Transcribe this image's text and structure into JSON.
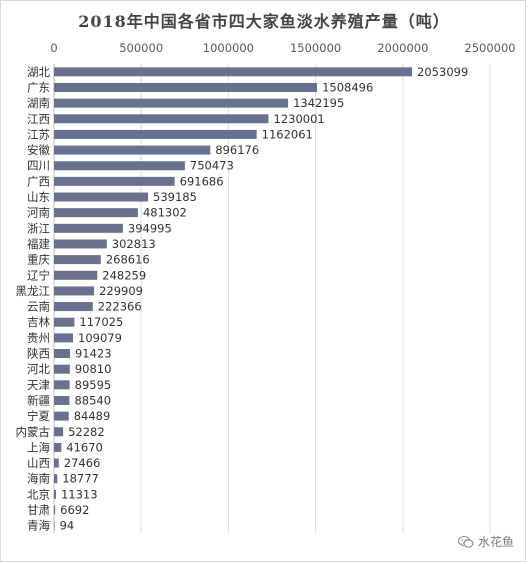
{
  "chart_data": {
    "type": "bar",
    "orientation": "horizontal",
    "title": "2018年中国各省市四大家鱼淡水养殖产量（吨）",
    "xlabel": "",
    "ylabel": "",
    "xlim": [
      0,
      2500000
    ],
    "x_ticks": [
      "0",
      "500000",
      "1000000",
      "1500000",
      "2000000",
      "2500000"
    ],
    "x_tick_values": [
      0,
      500000,
      1000000,
      1500000,
      2000000,
      2500000
    ],
    "x_axis_position": "top",
    "grid": true,
    "bar_color": "#69718e",
    "categories": [
      "湖北",
      "广东",
      "湖南",
      "江西",
      "江苏",
      "安徽",
      "四川",
      "广西",
      "山东",
      "河南",
      "浙江",
      "福建",
      "重庆",
      "辽宁",
      "黑龙江",
      "云南",
      "吉林",
      "贵州",
      "陕西",
      "河北",
      "天津",
      "新疆",
      "宁夏",
      "内蒙古",
      "上海",
      "山西",
      "海南",
      "北京",
      "甘肃",
      "青海"
    ],
    "values": [
      2053099,
      1508496,
      1342195,
      1230001,
      1162061,
      896176,
      750473,
      691686,
      539185,
      481302,
      394995,
      302813,
      268616,
      248259,
      229909,
      222366,
      117025,
      109079,
      91423,
      90810,
      89595,
      88540,
      84489,
      52282,
      41670,
      27466,
      18777,
      11313,
      6692,
      94
    ]
  },
  "watermark": {
    "text": "水花鱼",
    "icon": "wechat-logo-icon"
  }
}
